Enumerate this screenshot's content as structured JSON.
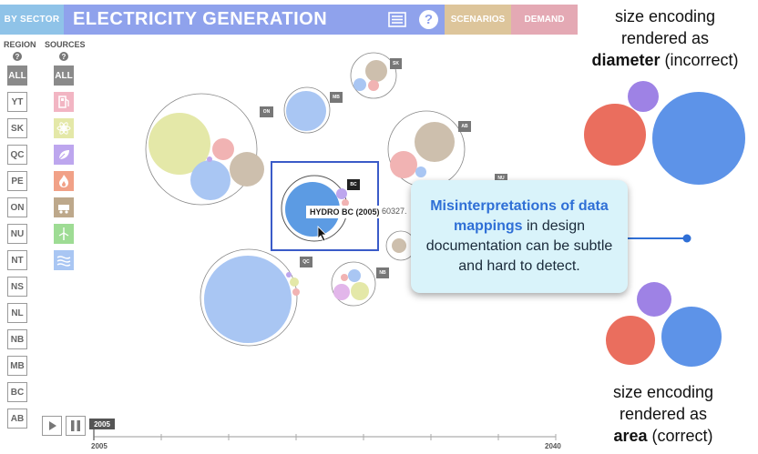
{
  "header": {
    "sector_tab": "BY SECTOR",
    "title": "ELECTRICITY GENERATION",
    "scenarios_tab": "SCENARIOS",
    "demand_tab": "DEMAND",
    "help_glyph": "?"
  },
  "filters": {
    "region_label": "REGION",
    "sources_label": "SOURCES",
    "help_glyph": "?",
    "regions": [
      "ALL",
      "YT",
      "SK",
      "QC",
      "PE",
      "ON",
      "NU",
      "NT",
      "NS",
      "NL",
      "NB",
      "MB",
      "BC",
      "AB"
    ],
    "sources_all": "ALL",
    "sources": [
      {
        "icon": "fuel-pump-icon",
        "color": "#f2b5c3"
      },
      {
        "icon": "nuclear-icon",
        "color": "#e4e8a8"
      },
      {
        "icon": "biomass-leaf-icon",
        "color": "#bda6ee"
      },
      {
        "icon": "flame-icon",
        "color": "#f1a187"
      },
      {
        "icon": "coal-cart-icon",
        "color": "#bda88b"
      },
      {
        "icon": "wind-solar-icon",
        "color": "#9edc94"
      },
      {
        "icon": "hydro-waves-icon",
        "color": "#a9c6f3"
      }
    ]
  },
  "chart": {
    "region_tags": [
      "SK",
      "MB",
      "ON",
      "AB",
      "BC",
      "NU",
      "QC",
      "NB"
    ],
    "tooltip_label": "HYDRO BC (2005)",
    "tooltip_value": "60327.",
    "timeline_current": "2005",
    "timeline_start": "2005",
    "timeline_end": "2040"
  },
  "callout": {
    "highlight": "Misinterpretations of data mappings",
    "rest": " in design documentation can be subtle and hard to detect."
  },
  "annotations": {
    "top_line1": "size encoding",
    "top_line2": "rendered as",
    "top_bold": "diameter",
    "top_suffix": " (incorrect)",
    "bottom_line1": "size encoding",
    "bottom_line2": "rendered as",
    "bottom_bold": "area",
    "bottom_suffix": " (correct)"
  },
  "colors": {
    "title_bar": "#8fa2ec",
    "hydro": "#a9c6f3",
    "hydro_dark": "#5c9be3",
    "nuclear": "#e4e8a8",
    "coal": "#cdbfad",
    "gas": "#f1b3b3",
    "biomass": "#bda6ee",
    "accent_blue": "#2f6fd6",
    "example_red": "#ea6e5e",
    "example_blue": "#5d93e8",
    "example_purple": "#9e82e5"
  }
}
